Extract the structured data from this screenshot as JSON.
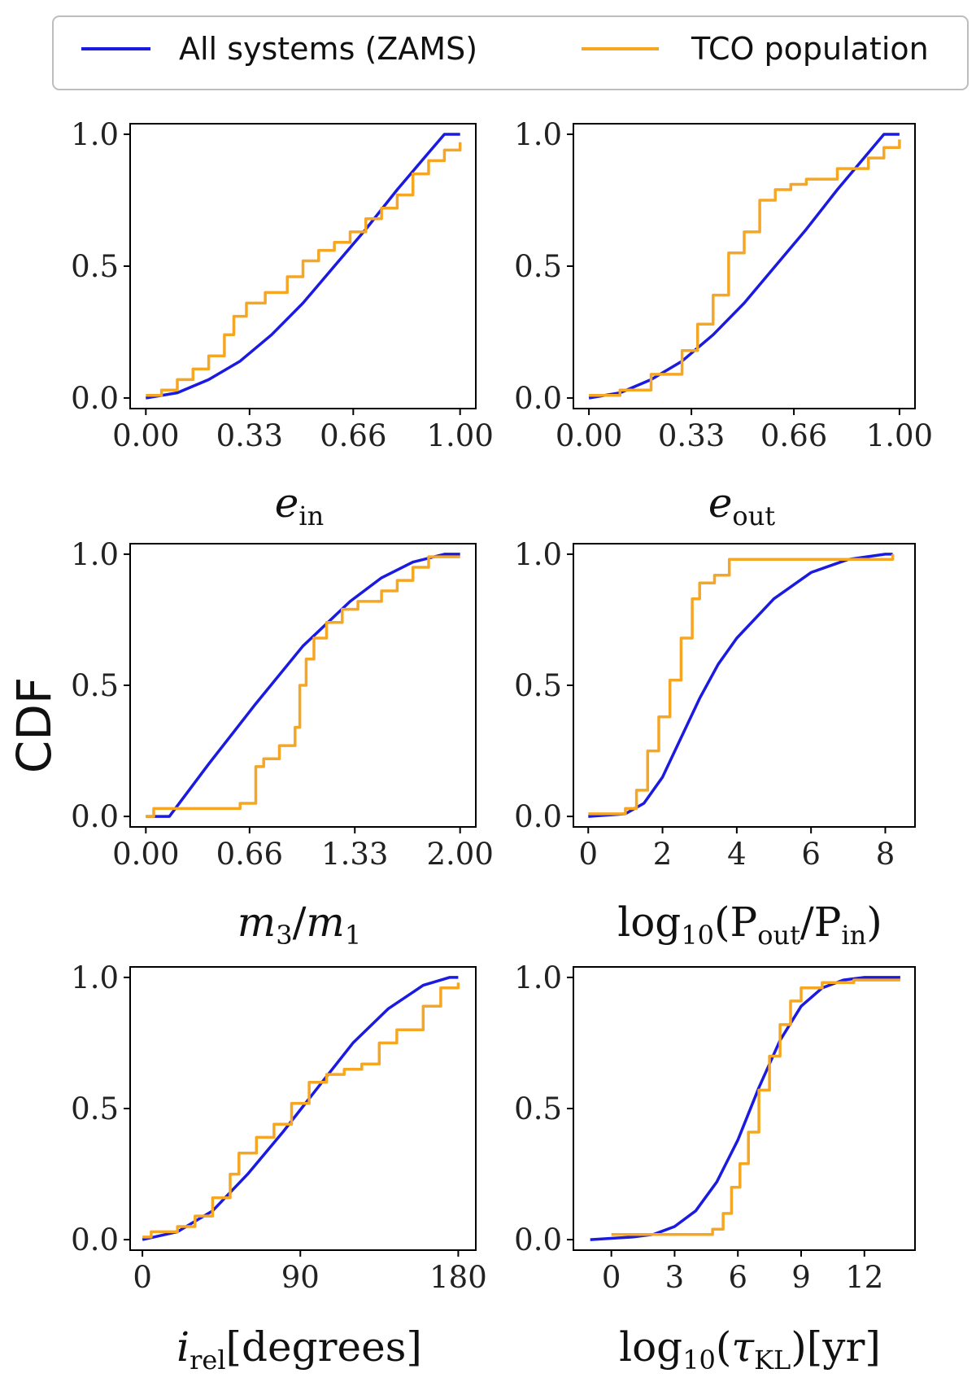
{
  "figure": {
    "ylabel": "CDF"
  },
  "legend": {
    "placement": "top",
    "entries": [
      {
        "label": "All systems (ZAMS)",
        "color": "#1a1ae0"
      },
      {
        "label": "TCO population",
        "color": "#f5a623"
      }
    ]
  },
  "chart_data": [
    {
      "type": "line",
      "panel": "e_in",
      "xlabel": "e_in",
      "xlim": [
        -0.05,
        1.05
      ],
      "ylim": [
        -0.04,
        1.04
      ],
      "xticks": [
        "0.00",
        "0.33",
        "0.66",
        "1.00"
      ],
      "xtick_values": [
        0,
        0.33,
        0.66,
        1.0
      ],
      "yticks": [
        "0.0",
        "0.5",
        "1.0"
      ],
      "ytick_values": [
        0,
        0.5,
        1.0
      ],
      "series": [
        {
          "name": "All systems (ZAMS)",
          "x": [
            0.0,
            0.1,
            0.2,
            0.3,
            0.4,
            0.5,
            0.6,
            0.7,
            0.8,
            0.9,
            0.95,
            1.0
          ],
          "y": [
            0.0,
            0.02,
            0.07,
            0.14,
            0.24,
            0.36,
            0.5,
            0.64,
            0.79,
            0.93,
            1.0,
            1.0
          ]
        },
        {
          "name": "TCO population",
          "step": true,
          "x": [
            0.0,
            0.05,
            0.1,
            0.15,
            0.2,
            0.25,
            0.28,
            0.32,
            0.38,
            0.45,
            0.5,
            0.55,
            0.6,
            0.65,
            0.7,
            0.75,
            0.8,
            0.85,
            0.9,
            0.95,
            1.0
          ],
          "y": [
            0.01,
            0.03,
            0.07,
            0.11,
            0.16,
            0.24,
            0.31,
            0.36,
            0.4,
            0.46,
            0.52,
            0.56,
            0.59,
            0.63,
            0.68,
            0.72,
            0.77,
            0.85,
            0.9,
            0.94,
            0.97
          ]
        }
      ]
    },
    {
      "type": "line",
      "panel": "e_out",
      "xlabel": "e_out",
      "xlim": [
        -0.05,
        1.05
      ],
      "ylim": [
        -0.04,
        1.04
      ],
      "xticks": [
        "0.00",
        "0.33",
        "0.66",
        "1.00"
      ],
      "xtick_values": [
        0,
        0.33,
        0.66,
        1.0
      ],
      "yticks": [
        "0.0",
        "0.5",
        "1.0"
      ],
      "ytick_values": [
        0,
        0.5,
        1.0
      ],
      "series": [
        {
          "name": "All systems (ZAMS)",
          "x": [
            0.0,
            0.1,
            0.2,
            0.3,
            0.4,
            0.5,
            0.6,
            0.7,
            0.8,
            0.9,
            0.95,
            1.0
          ],
          "y": [
            0.0,
            0.02,
            0.07,
            0.14,
            0.24,
            0.36,
            0.5,
            0.64,
            0.79,
            0.93,
            1.0,
            1.0
          ]
        },
        {
          "name": "TCO population",
          "step": true,
          "x": [
            0.0,
            0.1,
            0.2,
            0.3,
            0.35,
            0.4,
            0.45,
            0.5,
            0.55,
            0.6,
            0.65,
            0.7,
            0.8,
            0.9,
            0.95,
            1.0
          ],
          "y": [
            0.01,
            0.03,
            0.09,
            0.18,
            0.28,
            0.39,
            0.55,
            0.63,
            0.75,
            0.79,
            0.81,
            0.83,
            0.87,
            0.91,
            0.95,
            0.98
          ]
        }
      ]
    },
    {
      "type": "line",
      "panel": "m3_over_m1",
      "xlabel": "m3/m1",
      "xlim": [
        -0.1,
        2.1
      ],
      "ylim": [
        -0.04,
        1.04
      ],
      "xticks": [
        "0.00",
        "0.66",
        "1.33",
        "2.00"
      ],
      "xtick_values": [
        0,
        0.66,
        1.33,
        2.0
      ],
      "yticks": [
        "0.0",
        "0.5",
        "1.0"
      ],
      "ytick_values": [
        0,
        0.5,
        1.0
      ],
      "series": [
        {
          "name": "All systems (ZAMS)",
          "x": [
            0.0,
            0.15,
            0.4,
            0.7,
            1.0,
            1.3,
            1.5,
            1.7,
            1.9,
            2.0
          ],
          "y": [
            0.0,
            0.0,
            0.2,
            0.43,
            0.65,
            0.82,
            0.91,
            0.97,
            1.0,
            1.0
          ]
        },
        {
          "name": "TCO population",
          "step": true,
          "x": [
            0.0,
            0.05,
            0.6,
            0.7,
            0.75,
            0.85,
            0.95,
            0.98,
            1.02,
            1.07,
            1.15,
            1.25,
            1.35,
            1.5,
            1.6,
            1.7,
            1.8,
            2.0
          ],
          "y": [
            0.0,
            0.03,
            0.05,
            0.19,
            0.22,
            0.27,
            0.34,
            0.5,
            0.6,
            0.68,
            0.74,
            0.79,
            0.82,
            0.86,
            0.9,
            0.95,
            0.99,
            0.99
          ]
        }
      ]
    },
    {
      "type": "line",
      "panel": "log10_Pout_over_Pin",
      "xlabel": "log10(Pout/Pin)",
      "xlim": [
        -0.4,
        8.8
      ],
      "ylim": [
        -0.04,
        1.04
      ],
      "xticks": [
        "0",
        "2",
        "4",
        "6",
        "8"
      ],
      "xtick_values": [
        0,
        2,
        4,
        6,
        8
      ],
      "yticks": [
        "0.0",
        "0.5",
        "1.0"
      ],
      "ytick_values": [
        0,
        0.5,
        1.0
      ],
      "series": [
        {
          "name": "All systems (ZAMS)",
          "x": [
            0,
            1,
            1.5,
            2,
            2.5,
            3,
            3.5,
            4,
            5,
            6,
            7,
            8,
            8.2
          ],
          "y": [
            0.0,
            0.01,
            0.05,
            0.15,
            0.3,
            0.45,
            0.58,
            0.68,
            0.83,
            0.93,
            0.98,
            1.0,
            1.0
          ]
        },
        {
          "name": "TCO population",
          "step": true,
          "x": [
            0,
            1.0,
            1.3,
            1.6,
            1.9,
            2.2,
            2.5,
            2.8,
            3.0,
            3.4,
            3.8,
            8.2
          ],
          "y": [
            0.01,
            0.03,
            0.1,
            0.25,
            0.38,
            0.52,
            0.68,
            0.83,
            0.89,
            0.92,
            0.98,
            1.0
          ]
        }
      ]
    },
    {
      "type": "line",
      "panel": "i_rel",
      "xlabel": "i_rel [degrees]",
      "xlim": [
        -7,
        190
      ],
      "ylim": [
        -0.04,
        1.04
      ],
      "xticks": [
        "0",
        "90",
        "180"
      ],
      "xtick_values": [
        0,
        90,
        180
      ],
      "yticks": [
        "0.0",
        "0.5",
        "1.0"
      ],
      "ytick_values": [
        0,
        0.5,
        1.0
      ],
      "series": [
        {
          "name": "All systems (ZAMS)",
          "x": [
            0,
            20,
            40,
            60,
            80,
            100,
            120,
            140,
            160,
            175,
            180
          ],
          "y": [
            0.0,
            0.03,
            0.11,
            0.25,
            0.41,
            0.58,
            0.75,
            0.88,
            0.97,
            1.0,
            1.0
          ]
        },
        {
          "name": "TCO population",
          "step": true,
          "x": [
            0,
            5,
            20,
            30,
            40,
            50,
            55,
            65,
            75,
            85,
            95,
            105,
            115,
            125,
            135,
            145,
            160,
            170,
            180
          ],
          "y": [
            0.01,
            0.03,
            0.05,
            0.09,
            0.16,
            0.25,
            0.33,
            0.39,
            0.44,
            0.52,
            0.6,
            0.63,
            0.65,
            0.67,
            0.75,
            0.8,
            0.89,
            0.96,
            0.98
          ]
        }
      ]
    },
    {
      "type": "line",
      "panel": "log10_tau_KL",
      "xlabel": "log10(tau_KL)[yr]",
      "xlim": [
        -1.8,
        14.4
      ],
      "ylim": [
        -0.04,
        1.04
      ],
      "xticks": [
        "0",
        "3",
        "6",
        "9",
        "12"
      ],
      "xtick_values": [
        0,
        3,
        6,
        9,
        12
      ],
      "yticks": [
        "0.0",
        "0.5",
        "1.0"
      ],
      "ytick_values": [
        0,
        0.5,
        1.0
      ],
      "series": [
        {
          "name": "All systems (ZAMS)",
          "x": [
            -1,
            1,
            2,
            3,
            4,
            5,
            6,
            7,
            8,
            9,
            10,
            11,
            12,
            13.7
          ],
          "y": [
            0.0,
            0.01,
            0.02,
            0.05,
            0.11,
            0.22,
            0.38,
            0.58,
            0.76,
            0.89,
            0.96,
            0.99,
            1.0,
            1.0
          ]
        },
        {
          "name": "TCO population",
          "step": true,
          "x": [
            0,
            4.8,
            5.3,
            5.7,
            6.1,
            6.5,
            7.0,
            7.5,
            8.0,
            8.5,
            9.0,
            10.0,
            11.5,
            13.7
          ],
          "y": [
            0.02,
            0.04,
            0.1,
            0.2,
            0.29,
            0.41,
            0.57,
            0.7,
            0.82,
            0.91,
            0.96,
            0.98,
            0.99,
            0.99
          ]
        }
      ]
    }
  ]
}
